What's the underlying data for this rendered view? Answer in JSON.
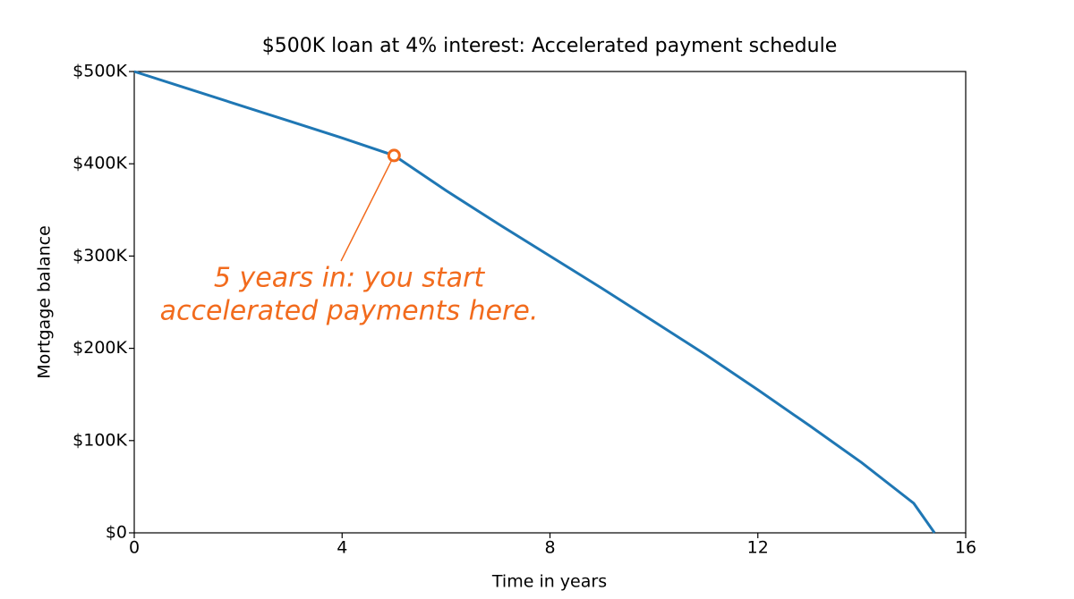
{
  "chart_data": {
    "type": "line",
    "title": "$500K loan at 4% interest: Accelerated payment schedule",
    "xlabel": "Time in years",
    "ylabel": "Mortgage balance",
    "x": [
      0,
      1,
      2,
      3,
      4,
      5,
      6,
      7,
      8,
      9,
      10,
      11,
      12,
      13,
      14,
      15,
      15.4
    ],
    "series": [
      {
        "name": "Mortgage balance",
        "color": "#1f77b4",
        "values": [
          500000,
          482000,
          464000,
          446000,
          428000,
          409000,
          371000,
          335000,
          300000,
          265000,
          229000,
          193000,
          155000,
          116000,
          76000,
          32000,
          0
        ]
      }
    ],
    "xlim": [
      0,
      16
    ],
    "xticks": [
      0,
      4,
      8,
      12,
      16
    ],
    "ylim": [
      0,
      500000
    ],
    "yticks": [
      {
        "value": 0,
        "label": "$0"
      },
      {
        "value": 100000,
        "label": "$100K"
      },
      {
        "value": 200000,
        "label": "$200K"
      },
      {
        "value": 300000,
        "label": "$300K"
      },
      {
        "value": 400000,
        "label": "$400K"
      },
      {
        "value": 500000,
        "label": "$500K"
      }
    ],
    "grid": false,
    "annotation": {
      "lines": [
        "5 years in: you start",
        "accelerated payments here."
      ],
      "x": 5,
      "y": 409000,
      "color": "#f26b1d"
    }
  }
}
